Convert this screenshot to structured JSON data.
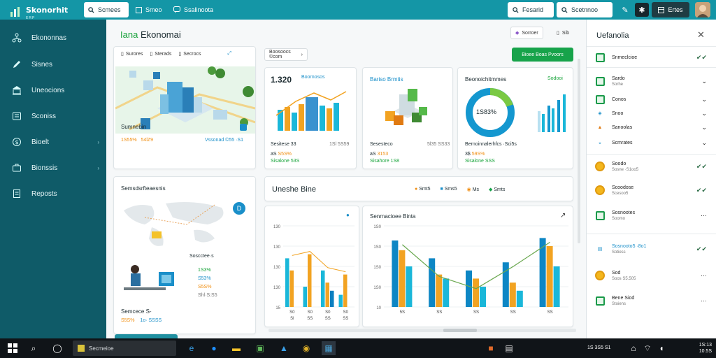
{
  "topbar": {
    "brand": "Skonorhit",
    "brand_sub": "ERP",
    "search_label": "Scmees",
    "tabs": [
      {
        "label": "Smeo",
        "icon": "grid-icon"
      },
      {
        "label": "Ssalinoota",
        "icon": "chat-icon"
      }
    ],
    "search_right_1": "Fesarid",
    "search_right_2": "Scetnnoo",
    "action_button": "Ertes",
    "colors": {
      "bar": "#1496a6",
      "accent": "#17a34a"
    }
  },
  "sidebar": {
    "items": [
      {
        "label": "Ekononnas",
        "icon": "network-icon"
      },
      {
        "label": "Sisnes",
        "icon": "pen-icon"
      },
      {
        "label": "Uneocions",
        "icon": "bank-icon"
      },
      {
        "label": "Sconiss",
        "icon": "receipt-icon"
      },
      {
        "label": "Bioelt",
        "icon": "dollar-icon"
      },
      {
        "label": "Bionssis",
        "icon": "briefcase-icon"
      },
      {
        "label": "Reposts",
        "icon": "document-icon"
      }
    ]
  },
  "main": {
    "title_accent": "Iana",
    "title": "Ekonomai",
    "header_pill_1": "Sorroer",
    "header_pill_2": "Sib",
    "filter_select": "Boosoocs ©com",
    "green_button": "Bioee Boas Pvoors",
    "overview_card": {
      "tabs": [
        "Surores",
        "Sterads",
        "Secrocs"
      ],
      "title": "Sumnebin",
      "value_left": "1S55%",
      "value_left_2": "54lZ9",
      "value_right": "Vssonad ©55 ·S1"
    },
    "kpi_1": {
      "big": "1.320",
      "tag": "Boornosos",
      "label": "Sesitese 33",
      "label_right": "1Sl 5S59",
      "v1": "aS",
      "v2": "S5S%",
      "v3": "Sisalone",
      "v4": "53S"
    },
    "kpi_2": {
      "title": "Bariso Brmtis",
      "label": "Sesesteco",
      "label_right": "5l35 SS33",
      "v1": "aS",
      "v2": "3153",
      "v3": "Sisahore",
      "v4": "1S8"
    },
    "kpi_3": {
      "title": "Beonoichitmmes",
      "tag": "Sodooi",
      "donut_label": "1S83%",
      "label": "Bernoinnalerhfcs ·Sci5s",
      "v1": "3$",
      "v2": "59S%",
      "v3": "Sisalone",
      "v4": "SSS"
    },
    "map_card": {
      "title": "Semsdsrfteaesnis",
      "legend": [
        {
          "text": "Soscctee·s",
          "value": ""
        },
        {
          "text": "",
          "value": "1S3%"
        },
        {
          "text": "",
          "value": "S53%"
        },
        {
          "text": "",
          "value": "S5S%"
        },
        {
          "text": "",
          "value": "Shl·S:S5"
        }
      ],
      "footer_title": "Semcece S-",
      "footer_v1": "S5S%",
      "footer_v2": "1o· SSSS"
    },
    "trend_section": {
      "title": "Uneshe Bine",
      "legend": [
        {
          "label": "Smt5",
          "icon": "coin-icon"
        },
        {
          "label": "Sms5",
          "icon": "database-icon"
        },
        {
          "label": "Ms",
          "icon": "coin-icon"
        },
        {
          "label": "Smts",
          "icon": "money-icon"
        }
      ]
    },
    "chart_left_title": "",
    "chart_right_title": "Senrnacioee Binta"
  },
  "chart_data": [
    {
      "type": "bar",
      "title": "",
      "categories": [
        "S0",
        "S0",
        "S0",
        "S0"
      ],
      "yticks": [
        "130",
        "130",
        "130",
        "130",
        "15"
      ],
      "series": [
        {
          "values": [
            60,
            25,
            45,
            15
          ],
          "color": "#1ab7d9"
        },
        {
          "values": [
            45,
            65,
            30,
            40
          ],
          "color": "#f2a322"
        },
        {
          "values": [
            0,
            0,
            20,
            0
          ],
          "color": "#0a7fc0"
        }
      ],
      "xlabels": [
        "Sl",
        "SS",
        "SS",
        "SS"
      ]
    },
    {
      "type": "bar",
      "title": "Senrnacioee Binta",
      "categories": [
        "5S",
        "SS",
        "SS",
        "SS",
        "SS"
      ],
      "yticks": [
        "1S0",
        "1S0",
        "1S0",
        "1S0",
        "10"
      ],
      "series": [
        {
          "values": [
            82,
            60,
            45,
            55,
            85
          ],
          "color": "#0d86c4"
        },
        {
          "values": [
            70,
            40,
            35,
            30,
            75
          ],
          "color": "#f2a322"
        },
        {
          "values": [
            50,
            35,
            25,
            20,
            50
          ],
          "color": "#1ab7d9"
        }
      ],
      "trend_line": true
    }
  ],
  "rpanel": {
    "title": "Uefanolia",
    "items": [
      {
        "label": "Snmeclcioe",
        "icon": "spreadsheet-icon",
        "action": "✔✔"
      },
      {
        "label": "Sardo",
        "sub": "Sorhe",
        "icon": "spreadsheet-icon",
        "action": "⌄"
      },
      {
        "label": "Conos",
        "icon": "spreadsheet-icon",
        "action": "⌄"
      },
      {
        "label": "Snoo",
        "icon": "tag-icon",
        "action": "⌄"
      },
      {
        "label": "Sanoolas",
        "icon": "chart-icon",
        "action": "⌄"
      },
      {
        "label": "Scmrates",
        "icon": "money-icon",
        "action": "⌄"
      },
      {
        "label": "Soodo",
        "sub": "Sosne ·S1oo5",
        "icon": "coin-icon",
        "action": "✔✔"
      },
      {
        "label": "Scoodose",
        "sub": "Scesoo5",
        "icon": "coin-icon",
        "action": "✔✔"
      },
      {
        "label": "Sosnootes",
        "sub": "Soomo",
        "icon": "spreadsheet-icon",
        "action": "···"
      },
      {
        "label": "Sosnooto5 ·8o1",
        "sub": "Sotiess",
        "icon": "document-icon",
        "action": "✔✔"
      },
      {
        "label": "Sod",
        "sub": "Soos S5.505",
        "icon": "coin-icon",
        "action": "···"
      },
      {
        "label": "Bene Siod",
        "sub": "Stoiens",
        "icon": "spreadsheet-icon",
        "action": "···"
      }
    ]
  },
  "taskbar": {
    "search": "Secmeioe",
    "time": "1S:13",
    "date": "10.5S",
    "tray_text": "1S 3S5 S1"
  }
}
